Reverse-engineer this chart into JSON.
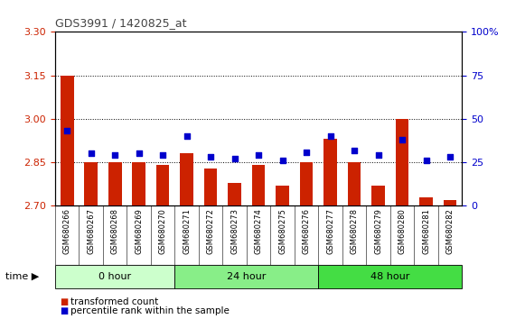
{
  "title": "GDS3991 / 1420825_at",
  "samples": [
    "GSM680266",
    "GSM680267",
    "GSM680268",
    "GSM680269",
    "GSM680270",
    "GSM680271",
    "GSM680272",
    "GSM680273",
    "GSM680274",
    "GSM680275",
    "GSM680276",
    "GSM680277",
    "GSM680278",
    "GSM680279",
    "GSM680280",
    "GSM680281",
    "GSM680282"
  ],
  "bar_values": [
    3.15,
    2.85,
    2.85,
    2.85,
    2.84,
    2.88,
    2.83,
    2.78,
    2.84,
    2.77,
    2.85,
    2.93,
    2.85,
    2.77,
    3.0,
    2.73,
    2.72
  ],
  "percentile_values": [
    43,
    30,
    29,
    30,
    29,
    40,
    28,
    27,
    29,
    26,
    31,
    40,
    32,
    29,
    38,
    26,
    28
  ],
  "ylim_left": [
    2.7,
    3.3
  ],
  "ylim_right": [
    0,
    100
  ],
  "yticks_left": [
    2.7,
    2.85,
    3.0,
    3.15,
    3.3
  ],
  "yticks_right": [
    0,
    25,
    50,
    75,
    100
  ],
  "hlines": [
    2.85,
    3.0,
    3.15
  ],
  "bar_color": "#cc2200",
  "dot_color": "#0000cc",
  "bar_bottom": 2.7,
  "group_labels": [
    "0 hour",
    "24 hour",
    "48 hour"
  ],
  "group_ranges": [
    [
      0,
      5
    ],
    [
      5,
      11
    ],
    [
      11,
      17
    ]
  ],
  "group_colors": [
    "#ccffcc",
    "#88ee88",
    "#44dd44"
  ],
  "legend_bar": "transformed count",
  "legend_dot": "percentile rank within the sample",
  "plot_bg": "#ffffff",
  "xtick_bg": "#d8d8d8",
  "left_tick_color": "#cc2200",
  "right_tick_color": "#0000cc",
  "title_color": "#444444"
}
